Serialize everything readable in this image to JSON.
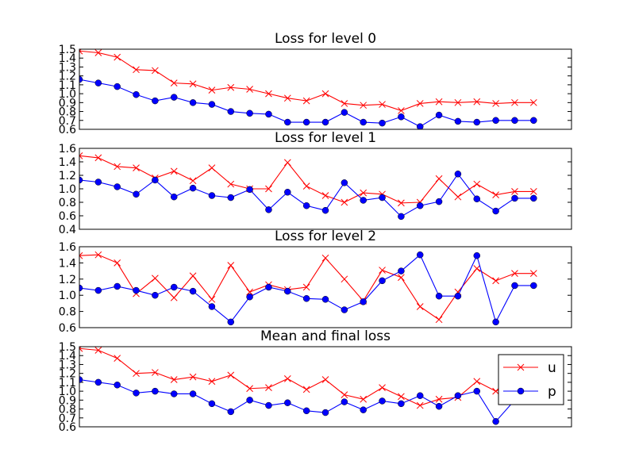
{
  "figure": {
    "background": "#ffffff"
  },
  "legend": {
    "location": "upper-right of last panel",
    "entries": [
      {
        "label": "u",
        "color": "#ff0000",
        "marker": "x"
      },
      {
        "label": "p",
        "color": "#0000ff",
        "marker": "o"
      }
    ]
  },
  "chart_data": [
    {
      "type": "line",
      "title": "Loss for level 0",
      "grid": false,
      "x_ticks_visible": false,
      "xlim": [
        0,
        26
      ],
      "ylim": [
        0.6,
        1.5
      ],
      "yticks": [
        0.6,
        0.7,
        0.8,
        0.9,
        1.0,
        1.1,
        1.2,
        1.3,
        1.4,
        1.5
      ],
      "ytick_labels": [
        "0.6",
        "0.7",
        "0.8",
        "0.9",
        "1.0",
        "1.1",
        "1.2",
        "1.3",
        "1.4",
        "1.5"
      ],
      "series": [
        {
          "name": "u",
          "color": "#ff0000",
          "marker": "x",
          "x": [
            0,
            1,
            2,
            3,
            4,
            5,
            6,
            7,
            8,
            9,
            10,
            11,
            12,
            13,
            14,
            15,
            16,
            17,
            18,
            19,
            20,
            21,
            22,
            23,
            24
          ],
          "y": [
            1.48,
            1.46,
            1.41,
            1.27,
            1.26,
            1.12,
            1.11,
            1.04,
            1.07,
            1.05,
            1.0,
            0.95,
            0.92,
            1.0,
            0.89,
            0.87,
            0.88,
            0.81,
            0.89,
            0.91,
            0.9,
            0.91,
            0.89,
            0.9,
            0.9
          ]
        },
        {
          "name": "p",
          "color": "#0000ff",
          "marker": "o",
          "x": [
            0,
            1,
            2,
            3,
            4,
            5,
            6,
            7,
            8,
            9,
            10,
            11,
            12,
            13,
            14,
            15,
            16,
            17,
            18,
            19,
            20,
            21,
            22,
            23,
            24
          ],
          "y": [
            1.16,
            1.12,
            1.08,
            0.99,
            0.92,
            0.96,
            0.9,
            0.88,
            0.8,
            0.78,
            0.77,
            0.68,
            0.68,
            0.68,
            0.79,
            0.68,
            0.67,
            0.74,
            0.63,
            0.76,
            0.69,
            0.68,
            0.7,
            0.7,
            0.7
          ]
        }
      ]
    },
    {
      "type": "line",
      "title": "Loss for level 1",
      "grid": false,
      "x_ticks_visible": false,
      "xlim": [
        0,
        26
      ],
      "ylim": [
        0.4,
        1.6
      ],
      "yticks": [
        0.4,
        0.6,
        0.8,
        1.0,
        1.2,
        1.4,
        1.6
      ],
      "ytick_labels": [
        "0.4",
        "0.6",
        "0.8",
        "1.0",
        "1.2",
        "1.4",
        "1.6"
      ],
      "series": [
        {
          "name": "u",
          "color": "#ff0000",
          "marker": "x",
          "x": [
            0,
            1,
            2,
            3,
            4,
            5,
            6,
            7,
            8,
            9,
            10,
            11,
            12,
            13,
            14,
            15,
            16,
            17,
            18,
            19,
            20,
            21,
            22,
            23,
            24
          ],
          "y": [
            1.49,
            1.46,
            1.33,
            1.31,
            1.16,
            1.26,
            1.12,
            1.31,
            1.07,
            1.0,
            1.0,
            1.39,
            1.04,
            0.9,
            0.8,
            0.94,
            0.92,
            0.79,
            0.8,
            1.15,
            0.88,
            1.07,
            0.91,
            0.96,
            0.96
          ]
        },
        {
          "name": "p",
          "color": "#0000ff",
          "marker": "o",
          "x": [
            0,
            1,
            2,
            3,
            4,
            5,
            6,
            7,
            8,
            9,
            10,
            11,
            12,
            13,
            14,
            15,
            16,
            17,
            18,
            19,
            20,
            21,
            22,
            23,
            24
          ],
          "y": [
            1.13,
            1.1,
            1.03,
            0.92,
            1.13,
            0.88,
            1.01,
            0.9,
            0.87,
            0.99,
            0.69,
            0.95,
            0.75,
            0.68,
            1.09,
            0.83,
            0.87,
            0.59,
            0.75,
            0.81,
            1.22,
            0.85,
            0.67,
            0.86,
            0.86
          ]
        }
      ]
    },
    {
      "type": "line",
      "title": "Loss for level 2",
      "grid": false,
      "x_ticks_visible": false,
      "xlim": [
        0,
        26
      ],
      "ylim": [
        0.6,
        1.6
      ],
      "yticks": [
        0.6,
        0.8,
        1.0,
        1.2,
        1.4,
        1.6
      ],
      "ytick_labels": [
        "0.6",
        "0.8",
        "1.0",
        "1.2",
        "1.4",
        "1.6"
      ],
      "series": [
        {
          "name": "u",
          "color": "#ff0000",
          "marker": "x",
          "x": [
            0,
            1,
            2,
            3,
            4,
            5,
            6,
            7,
            8,
            9,
            10,
            11,
            12,
            13,
            14,
            15,
            16,
            17,
            18,
            19,
            20,
            21,
            22,
            23,
            24
          ],
          "y": [
            1.49,
            1.5,
            1.4,
            1.02,
            1.21,
            0.97,
            1.24,
            0.95,
            1.37,
            1.04,
            1.13,
            1.07,
            1.1,
            1.46,
            1.2,
            0.93,
            1.31,
            1.22,
            0.86,
            0.7,
            1.04,
            1.33,
            1.18,
            1.27,
            1.27
          ]
        },
        {
          "name": "p",
          "color": "#0000ff",
          "marker": "o",
          "x": [
            0,
            1,
            2,
            3,
            4,
            5,
            6,
            7,
            8,
            9,
            10,
            11,
            12,
            13,
            14,
            15,
            16,
            17,
            18,
            19,
            20,
            21,
            22,
            23,
            24
          ],
          "y": [
            1.09,
            1.06,
            1.11,
            1.06,
            1.0,
            1.1,
            1.05,
            0.86,
            0.67,
            0.98,
            1.1,
            1.05,
            0.96,
            0.95,
            0.82,
            0.92,
            1.18,
            1.3,
            1.5,
            0.99,
            0.99,
            1.49,
            0.67,
            1.12,
            1.12
          ]
        }
      ]
    },
    {
      "type": "line",
      "title": "Mean and final loss",
      "grid": false,
      "x_ticks_visible": false,
      "xlim": [
        0,
        26
      ],
      "ylim": [
        0.6,
        1.5
      ],
      "yticks": [
        0.6,
        0.7,
        0.8,
        0.9,
        1.0,
        1.1,
        1.2,
        1.3,
        1.4,
        1.5
      ],
      "ytick_labels": [
        "0.6",
        "0.7",
        "0.8",
        "0.9",
        "1.0",
        "1.1",
        "1.2",
        "1.3",
        "1.4",
        "1.5"
      ],
      "legend": "upper-right",
      "series": [
        {
          "name": "u",
          "color": "#ff0000",
          "marker": "x",
          "x": [
            0,
            1,
            2,
            3,
            4,
            5,
            6,
            7,
            8,
            9,
            10,
            11,
            12,
            13,
            14,
            15,
            16,
            17,
            18,
            19,
            20,
            21,
            22,
            23,
            24
          ],
          "y": [
            1.48,
            1.46,
            1.37,
            1.2,
            1.21,
            1.13,
            1.16,
            1.11,
            1.18,
            1.03,
            1.04,
            1.14,
            1.02,
            1.13,
            0.96,
            0.91,
            1.04,
            0.94,
            0.84,
            0.91,
            0.93,
            1.11,
            1.0,
            1.11,
            1.11
          ]
        },
        {
          "name": "p",
          "color": "#0000ff",
          "marker": "o",
          "x": [
            0,
            1,
            2,
            3,
            4,
            5,
            6,
            7,
            8,
            9,
            10,
            11,
            12,
            13,
            14,
            15,
            16,
            17,
            18,
            19,
            20,
            21,
            22,
            23,
            24
          ],
          "y": [
            1.13,
            1.1,
            1.07,
            0.98,
            1.0,
            0.97,
            0.97,
            0.86,
            0.77,
            0.9,
            0.84,
            0.87,
            0.78,
            0.76,
            0.88,
            0.79,
            0.89,
            0.86,
            0.95,
            0.83,
            0.95,
            1.0,
            0.66,
            0.9,
            0.9
          ]
        }
      ]
    }
  ]
}
